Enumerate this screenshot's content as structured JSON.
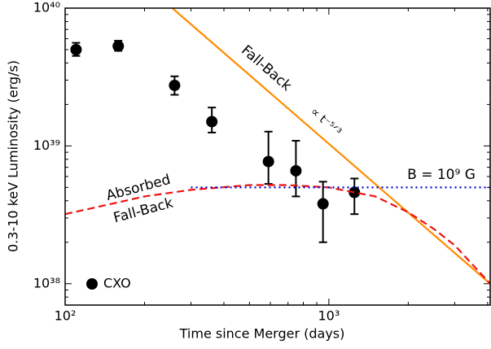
{
  "chart_data": {
    "type": "scatter",
    "xlabel": "Time since Merger (days)",
    "ylabel": "0.3-10 keV Luminosity (erg/s)",
    "log_x": true,
    "log_y": true,
    "xlim": [
      100,
      4090
    ],
    "ylim": [
      7e+37,
      1e+40
    ],
    "xticks": [
      {
        "value": 100,
        "label": "10²"
      },
      {
        "value": 1000,
        "label": "10³"
      }
    ],
    "yticks": [
      {
        "value": 1e+38,
        "label": "10³⁸"
      },
      {
        "value": 1e+39,
        "label": "10³⁹"
      },
      {
        "value": 1e+40,
        "label": "10⁴⁰"
      }
    ],
    "xminorticks": [
      200,
      300,
      400,
      500,
      600,
      700,
      800,
      900,
      2000,
      3000,
      4000
    ],
    "yminorticks": [
      8e+37,
      9e+37,
      2e+38,
      3e+38,
      4e+38,
      5e+38,
      6e+38,
      7e+38,
      8e+38,
      9e+38,
      2e+39,
      3e+39,
      4e+39,
      5e+39,
      6e+39,
      7e+39,
      8e+39,
      9e+39
    ],
    "legend": "lower left",
    "series": [
      {
        "name": "CXO",
        "type": "scatter",
        "color": "#000000",
        "x": [
          110,
          159,
          260,
          360,
          590,
          750,
          950,
          1250
        ],
        "values": [
          5e+39,
          5.3e+39,
          2.75e+39,
          1.5e+39,
          7.7e+38,
          6.6e+38,
          3.8e+38,
          4.6e+38
        ],
        "errors_minus": [
          5e+38,
          4e+38,
          4e+38,
          2.5e+38,
          2.4e+38,
          2.3e+38,
          1.8e+38,
          1.4e+38
        ],
        "errors_plus": [
          6e+38,
          5e+38,
          4.5e+38,
          4e+38,
          5e+38,
          4.3e+38,
          1.7e+38,
          1.2e+38
        ]
      },
      {
        "type": "line",
        "color": "#ff8c00",
        "dash": "solid",
        "x": [
          255,
          4090
        ],
        "values": [
          1e+40,
          1e+38
        ]
      },
      {
        "type": "line",
        "color": "#ee1111",
        "dash": "dashed",
        "x": [
          100,
          150,
          200,
          300,
          500,
          700,
          1000,
          1500,
          2000,
          2500,
          3000,
          4090
        ],
        "values": [
          3.2e+38,
          3.8e+38,
          4.3e+38,
          4.8e+38,
          5.2e+38,
          5.2e+38,
          5e+38,
          4.3e+38,
          3.3e+38,
          2.5e+38,
          1.9e+38,
          1e+38
        ]
      },
      {
        "type": "line",
        "color": "#0000cc",
        "dash": "dotted",
        "x": [
          300,
          4090
        ],
        "values": [
          5e+38,
          5e+38
        ]
      }
    ],
    "annotations": [
      {
        "text": "Fall-Back",
        "color": "#ff8c00"
      },
      {
        "text": "∝ t⁻⁵ᐟ³",
        "color": "#ff8c00"
      },
      {
        "text": "Absorbed",
        "color": "#ee1111"
      },
      {
        "text": "Fall-Back",
        "color": "#ee1111"
      },
      {
        "text": "B = 10⁹ G",
        "color": "#0000cc"
      }
    ]
  }
}
